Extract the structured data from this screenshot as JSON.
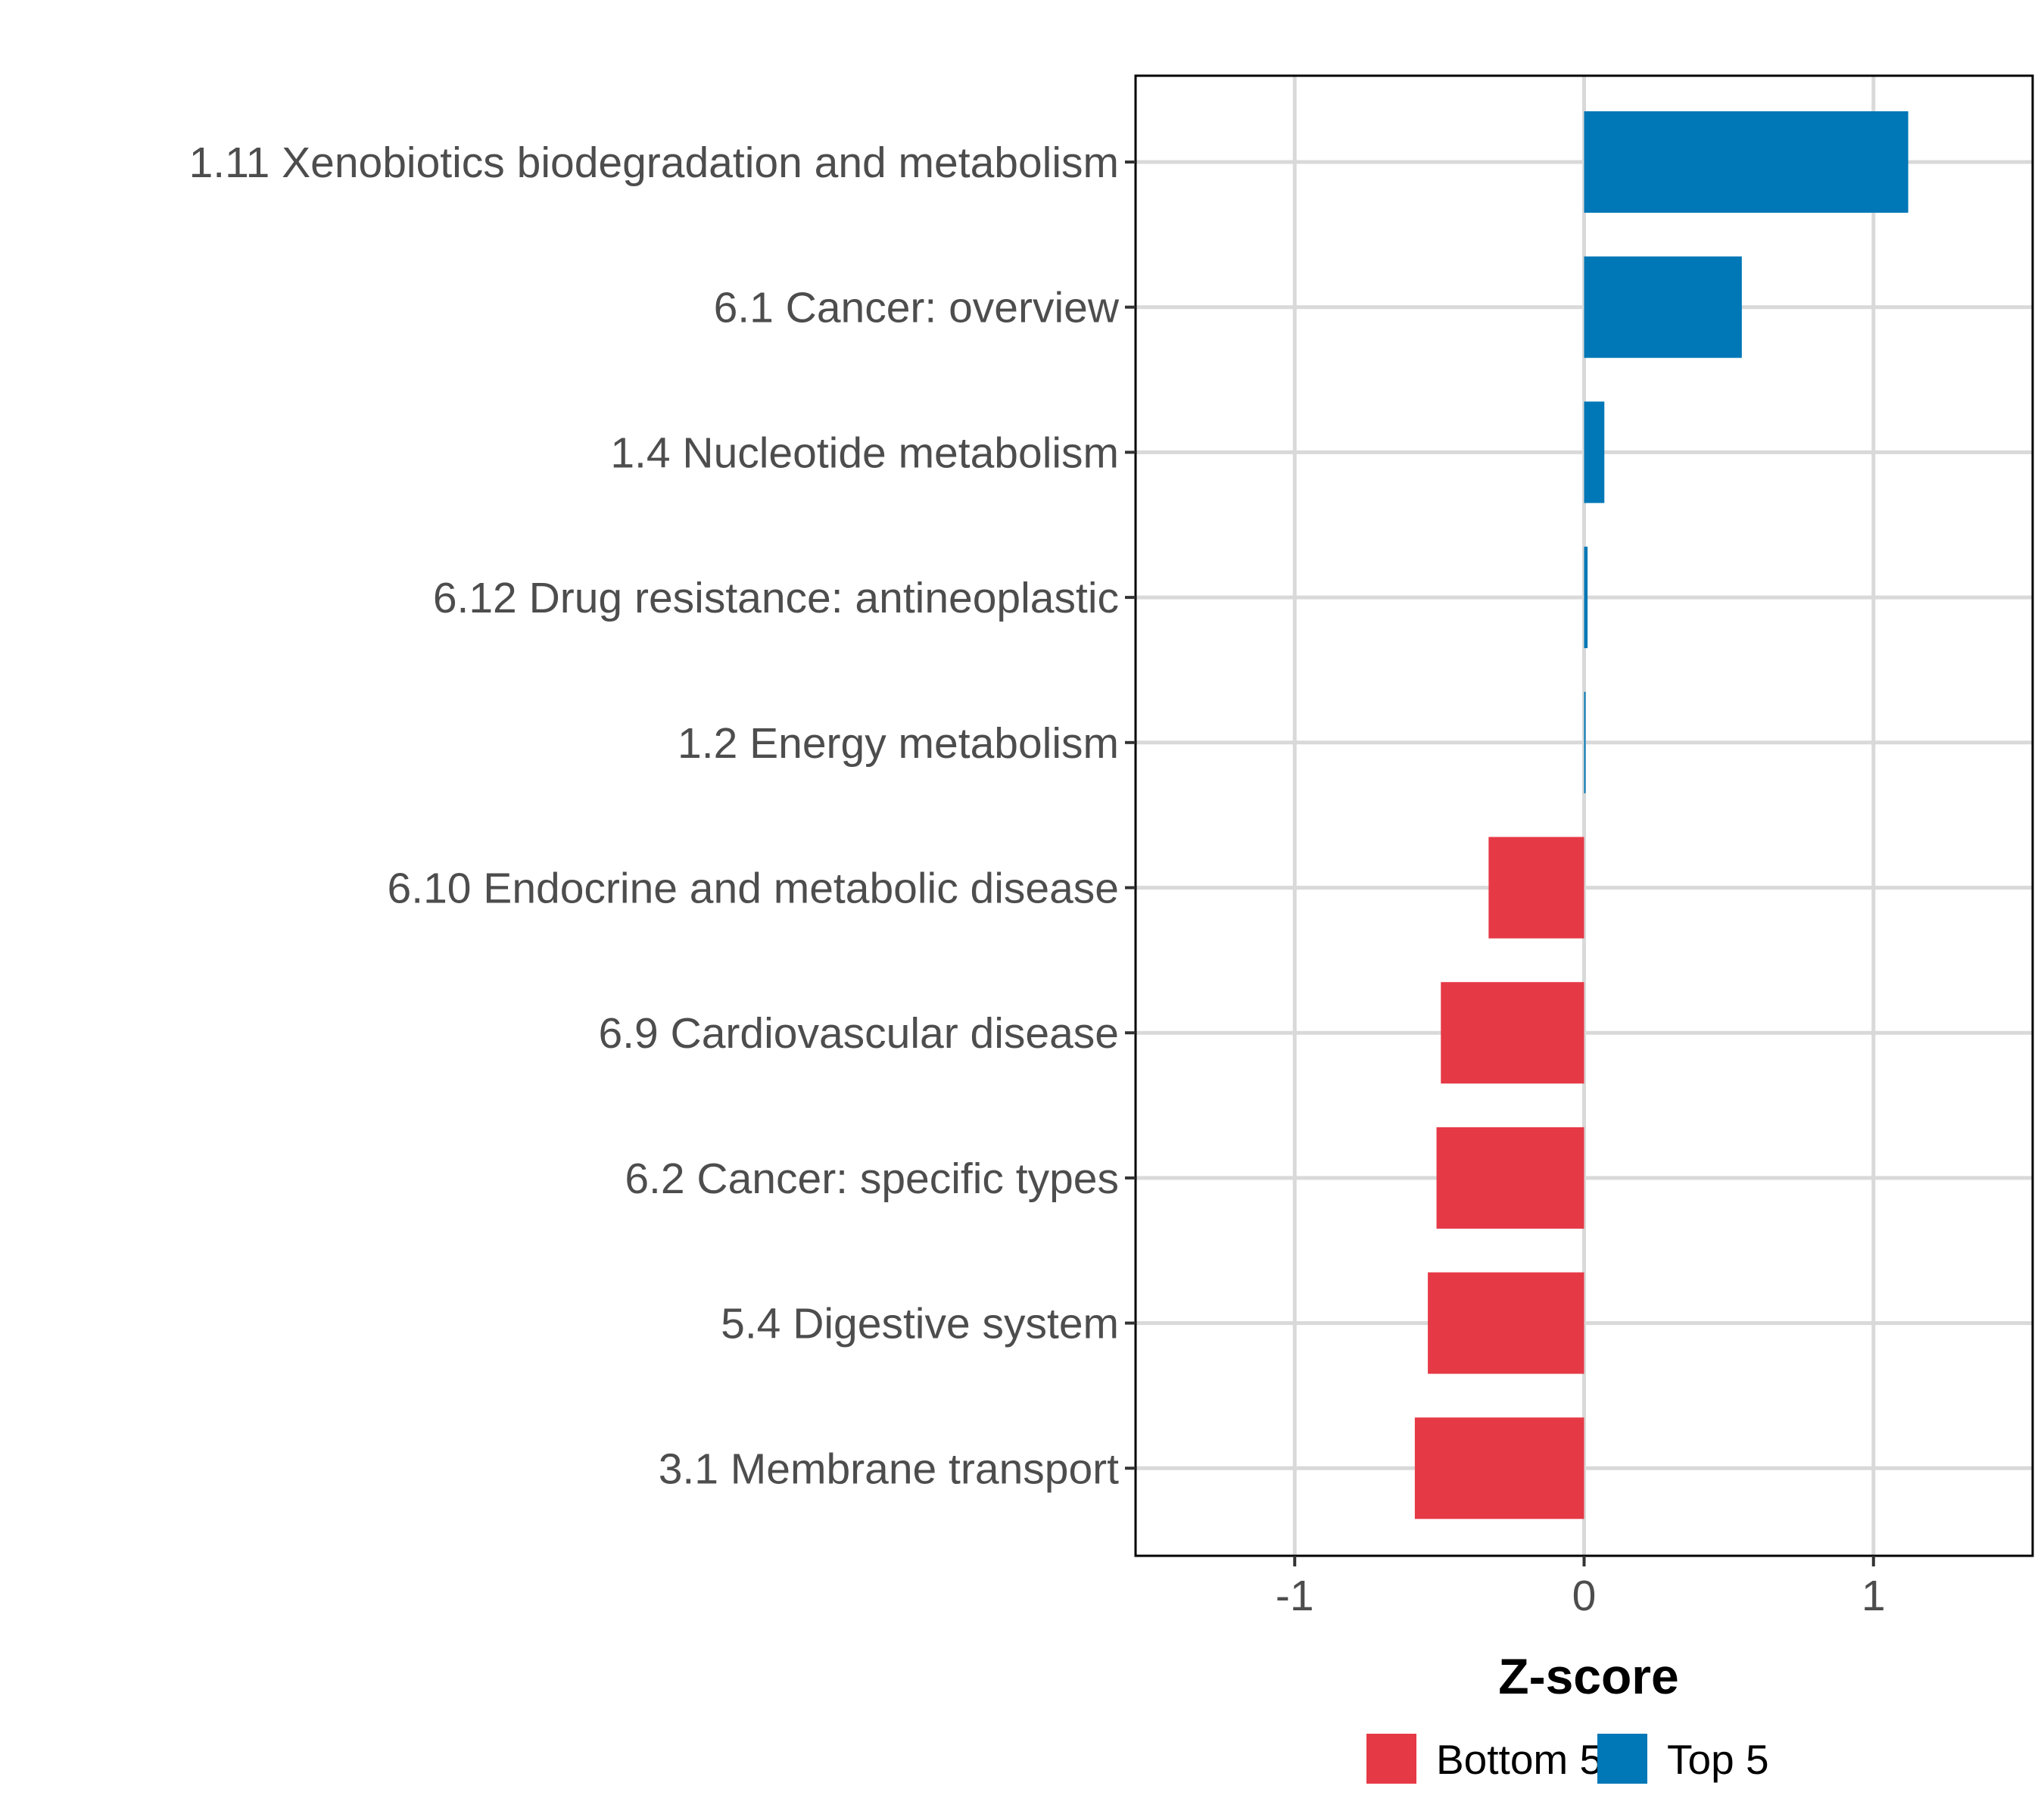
{
  "chart_data": {
    "type": "bar",
    "orientation": "horizontal",
    "title": "",
    "xlabel": "Z-score",
    "ylabel": "",
    "xlim": [
      -1.55,
      1.55
    ],
    "xticks": [
      -1,
      0,
      1
    ],
    "xtick_labels": [
      "-1",
      "0",
      "1"
    ],
    "grid": true,
    "legend_position": "bottom",
    "categories": [
      "1.11 Xenobiotics biodegradation and metabolism",
      "6.1 Cancer: overview",
      "1.4 Nucleotide metabolism",
      "6.12 Drug resistance: antineoplastic",
      "1.2 Energy metabolism",
      "6.10 Endocrine and metabolic disease",
      "6.9 Cardiovascular disease",
      "6.2 Cancer: specific types",
      "5.4 Digestive system",
      "3.1 Membrane transport"
    ],
    "values": [
      1.12,
      0.545,
      0.07,
      0.012,
      0.005,
      -0.33,
      -0.495,
      -0.51,
      -0.54,
      -0.585
    ],
    "groups": [
      "Top 5",
      "Top 5",
      "Top 5",
      "Top 5",
      "Top 5",
      "Bottom 5",
      "Bottom 5",
      "Bottom 5",
      "Bottom 5",
      "Bottom 5"
    ],
    "legend": [
      {
        "name": "Bottom 5",
        "color": "#e63946"
      },
      {
        "name": "Top 5",
        "color": "#0077b6"
      }
    ]
  }
}
